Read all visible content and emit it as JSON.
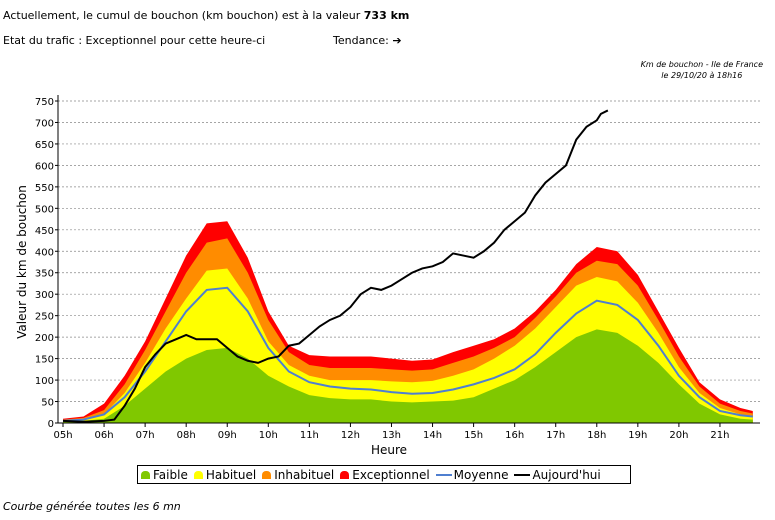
{
  "header": {
    "line1_prefix": "Actuellement, le cumul de bouchon (km bouchon) est à la valeur ",
    "line1_value": "733 km",
    "status": "Etat du trafic : Exceptionnel pour cette heure-ci",
    "trend_label": "Tendance:",
    "trend_icon": "arrow-right-icon"
  },
  "source": {
    "title": "Km de bouchon - Ile de France",
    "date": "le 29/10/20 à 18h16"
  },
  "footer": "Courbe générée toutes les 6 mn",
  "chart_data": {
    "type": "area",
    "xlabel": "Heure",
    "ylabel": "Valeur du  km de bouchon",
    "ylim": [
      0,
      750
    ],
    "x_ticks": [
      "05h",
      "06h",
      "07h",
      "08h",
      "09h",
      "10h",
      "11h",
      "12h",
      "13h",
      "14h",
      "15h",
      "16h",
      "17h",
      "18h",
      "19h",
      "20h",
      "21h"
    ],
    "y_ticks": [
      0,
      50,
      100,
      150,
      200,
      250,
      300,
      350,
      400,
      450,
      500,
      550,
      600,
      650,
      700,
      750
    ],
    "grid": true,
    "legend_position": "bottom",
    "x": [
      5,
      5.5,
      6,
      6.5,
      7,
      7.5,
      8,
      8.5,
      9,
      9.5,
      10,
      10.5,
      11,
      11.5,
      12,
      12.5,
      13,
      13.5,
      14,
      14.5,
      15,
      15.5,
      16,
      16.5,
      17,
      17.5,
      18,
      18.5,
      19,
      19.5,
      20,
      20.5,
      21,
      21.5,
      21.8
    ],
    "series": [
      {
        "name": "Exceptionnel",
        "color": "#ff0000",
        "values": [
          10,
          15,
          45,
          110,
          190,
          290,
          390,
          465,
          470,
          385,
          260,
          180,
          158,
          155,
          155,
          155,
          150,
          145,
          148,
          165,
          180,
          195,
          220,
          260,
          310,
          370,
          410,
          400,
          345,
          260,
          175,
          95,
          55,
          35,
          28
        ]
      },
      {
        "name": "Inhabituel",
        "color": "#ff8c00",
        "values": [
          8,
          12,
          30,
          90,
          170,
          260,
          350,
          420,
          430,
          350,
          240,
          165,
          135,
          128,
          128,
          128,
          125,
          122,
          125,
          140,
          155,
          175,
          200,
          245,
          295,
          350,
          378,
          370,
          320,
          240,
          155,
          85,
          45,
          28,
          22
        ]
      },
      {
        "name": "Habituel",
        "color": "#ffff00",
        "values": [
          5,
          8,
          20,
          70,
          140,
          220,
          290,
          355,
          360,
          290,
          190,
          135,
          110,
          100,
          100,
          100,
          97,
          95,
          98,
          110,
          125,
          150,
          180,
          220,
          270,
          320,
          340,
          330,
          280,
          210,
          130,
          70,
          35,
          20,
          15
        ]
      },
      {
        "name": "Faible",
        "color": "#80c800",
        "values": [
          5,
          5,
          10,
          40,
          80,
          120,
          150,
          170,
          175,
          150,
          110,
          85,
          65,
          58,
          55,
          55,
          50,
          48,
          50,
          52,
          60,
          80,
          100,
          130,
          165,
          200,
          218,
          210,
          180,
          140,
          90,
          45,
          20,
          10,
          8
        ]
      },
      {
        "name": "Moyenne",
        "color": "#4f7fd0",
        "values": [
          5,
          8,
          20,
          60,
          120,
          190,
          260,
          310,
          315,
          260,
          175,
          120,
          95,
          85,
          80,
          78,
          72,
          68,
          70,
          78,
          90,
          105,
          125,
          160,
          210,
          255,
          285,
          275,
          240,
          180,
          110,
          60,
          28,
          18,
          15
        ]
      }
    ],
    "today": {
      "name": "Aujourd'hui",
      "color": "#000000",
      "x": [
        5,
        5.5,
        6,
        6.25,
        6.5,
        6.75,
        7,
        7.25,
        7.5,
        7.75,
        8,
        8.25,
        8.5,
        8.75,
        9,
        9.25,
        9.5,
        9.75,
        10,
        10.25,
        10.5,
        10.75,
        11,
        11.25,
        11.5,
        11.75,
        12,
        12.25,
        12.5,
        12.75,
        13,
        13.25,
        13.5,
        13.75,
        14,
        14.25,
        14.5,
        14.75,
        15,
        15.25,
        15.5,
        15.75,
        16,
        16.25,
        16.5,
        16.75,
        17,
        17.25,
        17.5,
        17.75,
        18,
        18.1,
        18.27
      ],
      "values": [
        5,
        3,
        5,
        8,
        40,
        80,
        130,
        160,
        185,
        195,
        205,
        195,
        195,
        195,
        175,
        155,
        145,
        140,
        150,
        155,
        180,
        185,
        205,
        225,
        240,
        250,
        270,
        300,
        315,
        310,
        320,
        335,
        350,
        360,
        365,
        375,
        395,
        390,
        385,
        400,
        420,
        450,
        470,
        490,
        530,
        560,
        580,
        600,
        660,
        690,
        705,
        720,
        728
      ]
    },
    "legend": [
      "Faible",
      "Habituel",
      "Inhabituel",
      "Exceptionnel",
      "Moyenne",
      "Aujourd'hui"
    ]
  }
}
